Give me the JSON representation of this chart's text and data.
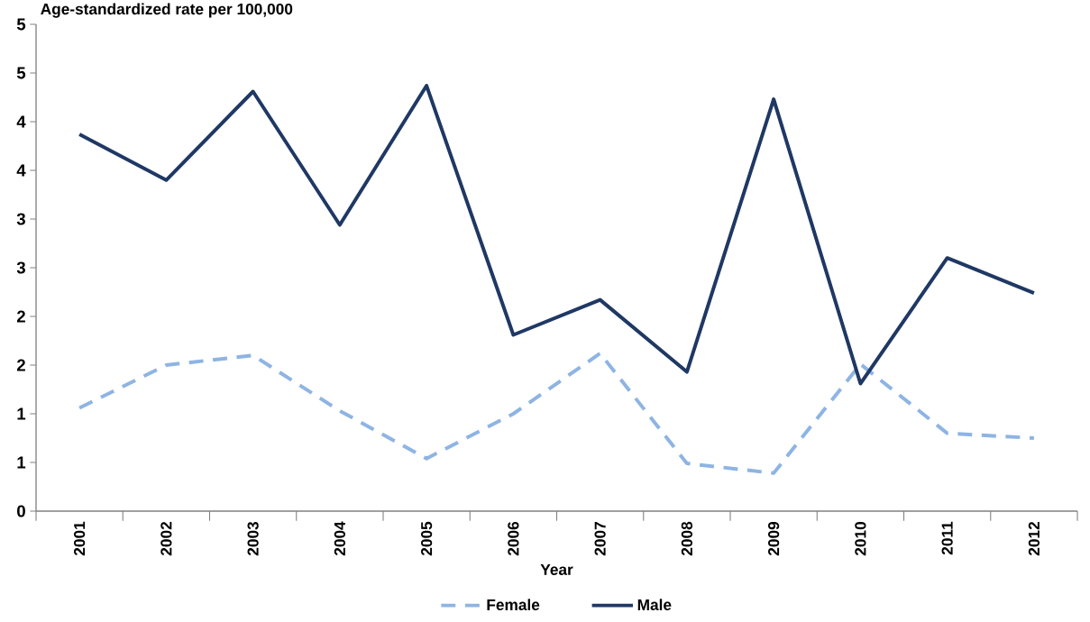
{
  "chart_data": {
    "type": "line",
    "ylabel": "Age-standardized rate per 100,000",
    "xlabel": "Year",
    "categories": [
      "2001",
      "2002",
      "2003",
      "2004",
      "2005",
      "2006",
      "2007",
      "2008",
      "2009",
      "2010",
      "2011",
      "2012"
    ],
    "series": [
      {
        "name": "Female",
        "color": "#8eb4e3",
        "line_style": "dashed",
        "values": [
          1.06,
          1.5,
          1.6,
          1.03,
          0.54,
          1.0,
          1.62,
          0.49,
          0.39,
          1.51,
          0.8,
          0.75
        ]
      },
      {
        "name": "Male",
        "color": "#1f3864",
        "line_style": "solid",
        "values": [
          3.87,
          3.4,
          4.31,
          2.94,
          4.37,
          1.81,
          2.17,
          1.43,
          4.23,
          1.31,
          2.6,
          2.24
        ]
      }
    ],
    "ylim": [
      0,
      5
    ],
    "yticks": [
      {
        "value": 0,
        "label": "0"
      },
      {
        "value": 0.5,
        "label": "1"
      },
      {
        "value": 1,
        "label": "1"
      },
      {
        "value": 1.5,
        "label": "2"
      },
      {
        "value": 2,
        "label": "2"
      },
      {
        "value": 2.5,
        "label": "3"
      },
      {
        "value": 3,
        "label": "3"
      },
      {
        "value": 3.5,
        "label": "4"
      },
      {
        "value": 4,
        "label": "4"
      },
      {
        "value": 4.5,
        "label": "5"
      },
      {
        "value": 5,
        "label": "5"
      }
    ],
    "grid": false,
    "legend": "bottom"
  }
}
